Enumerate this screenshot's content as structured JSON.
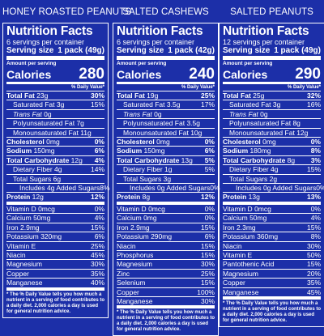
{
  "labels": [
    {
      "product": "HONEY ROASTED PEANUTS",
      "title": "Nutrition Facts",
      "servings": "6 servings per container",
      "serving_label": "Serving size",
      "serving_value": "1 pack (49g)",
      "amount_per_serving": "Amount per serving",
      "calories_label": "Calories",
      "calories": "280",
      "dv_header": "% Daily Value*",
      "rows": [
        {
          "name": "Total Fat",
          "bold": true,
          "amt": "23g",
          "dv": "30%",
          "indent": 0
        },
        {
          "name": "Saturated Fat",
          "bold": false,
          "amt": "3g",
          "dv": "15%",
          "indent": 1
        },
        {
          "name": "Trans Fat",
          "bold": false,
          "italic": true,
          "amt": "0g",
          "dv": "",
          "indent": 1
        },
        {
          "name": "Polyunsaturated Fat",
          "bold": false,
          "amt": "7g",
          "dv": "",
          "indent": 1
        },
        {
          "name": "Monounsaturated Fat",
          "bold": false,
          "amt": "11g",
          "dv": "",
          "indent": 1
        },
        {
          "name": "Cholesterol",
          "bold": true,
          "amt": "0mg",
          "dv": "0%",
          "indent": 0
        },
        {
          "name": "Sodium",
          "bold": true,
          "amt": "150mg",
          "dv": "6%",
          "indent": 0
        },
        {
          "name": "Total Carbohydrate",
          "bold": true,
          "amt": "12g",
          "dv": "4%",
          "indent": 0
        },
        {
          "name": "Dietary Fiber",
          "bold": false,
          "amt": "4g",
          "dv": "14%",
          "indent": 1
        },
        {
          "name": "Total Sugars",
          "bold": false,
          "amt": "6g",
          "dv": "",
          "indent": 1
        },
        {
          "name": "Includes 4g Added Sugars",
          "bold": false,
          "amt": "",
          "dv": "8%",
          "indent": 2
        },
        {
          "name": "Protein",
          "bold": true,
          "amt": "12g",
          "dv": "12%",
          "indent": 0,
          "thick": true
        },
        {
          "name": "Vitamin D",
          "bold": false,
          "amt": "0mcg",
          "dv": "0%",
          "indent": 0
        },
        {
          "name": "Calcium",
          "bold": false,
          "amt": "50mg",
          "dv": "4%",
          "indent": 0
        },
        {
          "name": "Iron",
          "bold": false,
          "amt": "2.9mg",
          "dv": "15%",
          "indent": 0
        },
        {
          "name": "Potassium",
          "bold": false,
          "amt": "320mg",
          "dv": "6%",
          "indent": 0
        },
        {
          "name": "Vitamin E",
          "bold": false,
          "amt": "",
          "dv": "25%",
          "indent": 0
        },
        {
          "name": "Niacin",
          "bold": false,
          "amt": "",
          "dv": "45%",
          "indent": 0
        },
        {
          "name": "Magnesium",
          "bold": false,
          "amt": "",
          "dv": "30%",
          "indent": 0
        },
        {
          "name": "Copper",
          "bold": false,
          "amt": "",
          "dv": "35%",
          "indent": 0
        },
        {
          "name": "Manganese",
          "bold": false,
          "amt": "",
          "dv": "40%",
          "indent": 0,
          "thick": true
        }
      ],
      "footnote": "* The % Daily Value tells you how much a nutrient in a serving of food contributes to a daily diet. 2,000 calories a day is used for general nutrition advice."
    },
    {
      "product": "SALTED CASHEWS",
      "title": "Nutrition Facts",
      "servings": "6 servings per container",
      "serving_label": "Serving size",
      "serving_value": "1 pack (42g)",
      "amount_per_serving": "Amount per serving",
      "calories_label": "Calories",
      "calories": "240",
      "dv_header": "% Daily Value*",
      "rows": [
        {
          "name": "Total Fat",
          "bold": true,
          "amt": "19g",
          "dv": "25%",
          "indent": 0
        },
        {
          "name": "Saturated Fat",
          "bold": false,
          "amt": "3.5g",
          "dv": "17%",
          "indent": 1
        },
        {
          "name": "Trans Fat",
          "bold": false,
          "italic": true,
          "amt": "0g",
          "dv": "",
          "indent": 1
        },
        {
          "name": "Polyunsaturated Fat",
          "bold": false,
          "amt": "3.5g",
          "dv": "",
          "indent": 1
        },
        {
          "name": "Monounsaturated Fat",
          "bold": false,
          "amt": "10g",
          "dv": "",
          "indent": 1
        },
        {
          "name": "Cholesterol",
          "bold": true,
          "amt": "0mg",
          "dv": "0%",
          "indent": 0
        },
        {
          "name": "Sodium",
          "bold": true,
          "amt": "150mg",
          "dv": "6%",
          "indent": 0
        },
        {
          "name": "Total Carbohydrate",
          "bold": true,
          "amt": "13g",
          "dv": "5%",
          "indent": 0
        },
        {
          "name": "Dietary Fiber",
          "bold": false,
          "amt": "1g",
          "dv": "5%",
          "indent": 1
        },
        {
          "name": "Total Sugars",
          "bold": false,
          "amt": "3g",
          "dv": "",
          "indent": 1
        },
        {
          "name": "Includes 0g Added Sugars",
          "bold": false,
          "amt": "",
          "dv": "0%",
          "indent": 2
        },
        {
          "name": "Protein",
          "bold": true,
          "amt": "8g",
          "dv": "12%",
          "indent": 0,
          "thick": true
        },
        {
          "name": "Vitamin D",
          "bold": false,
          "amt": "0mcg",
          "dv": "0%",
          "indent": 0
        },
        {
          "name": "Calcium",
          "bold": false,
          "amt": "0mg",
          "dv": "0%",
          "indent": 0
        },
        {
          "name": "Iron",
          "bold": false,
          "amt": "2.9mg",
          "dv": "15%",
          "indent": 0
        },
        {
          "name": "Potassium",
          "bold": false,
          "amt": "290mg",
          "dv": "6%",
          "indent": 0
        },
        {
          "name": "Niacin",
          "bold": false,
          "amt": "",
          "dv": "15%",
          "indent": 0
        },
        {
          "name": "Phosphorus",
          "bold": false,
          "amt": "",
          "dv": "15%",
          "indent": 0
        },
        {
          "name": "Magnesium",
          "bold": false,
          "amt": "",
          "dv": "30%",
          "indent": 0
        },
        {
          "name": "Zinc",
          "bold": false,
          "amt": "",
          "dv": "25%",
          "indent": 0
        },
        {
          "name": "Selenium",
          "bold": false,
          "amt": "",
          "dv": "15%",
          "indent": 0
        },
        {
          "name": "Copper",
          "bold": false,
          "amt": "",
          "dv": "100%",
          "indent": 0
        },
        {
          "name": "Manganese",
          "bold": false,
          "amt": "",
          "dv": "30%",
          "indent": 0,
          "thick": true
        }
      ],
      "footnote": "* The % Daily Value tells you how much a nutrient in a serving of food contributes to a daily diet. 2,000 calories a day is used for general nutrition advice."
    },
    {
      "product": "SALTED PEANUTS",
      "title": "Nutrition Facts",
      "servings": "12 servings per container",
      "serving_label": "Serving size",
      "serving_value": "1 pack (49g)",
      "amount_per_serving": "Amount per serving",
      "calories_label": "Calories",
      "calories": "290",
      "dv_header": "% Daily Value*",
      "rows": [
        {
          "name": "Total Fat",
          "bold": true,
          "amt": "25g",
          "dv": "32%",
          "indent": 0
        },
        {
          "name": "Saturated Fat",
          "bold": false,
          "amt": "3g",
          "dv": "16%",
          "indent": 1
        },
        {
          "name": "Trans Fat",
          "bold": false,
          "italic": true,
          "amt": "0g",
          "dv": "",
          "indent": 1
        },
        {
          "name": "Polyunsaturated Fat",
          "bold": false,
          "amt": "8g",
          "dv": "",
          "indent": 1
        },
        {
          "name": "Monounsaturated Fat",
          "bold": false,
          "amt": "12g",
          "dv": "",
          "indent": 1
        },
        {
          "name": "Cholesterol",
          "bold": true,
          "amt": "0mg",
          "dv": "0%",
          "indent": 0
        },
        {
          "name": "Sodium",
          "bold": true,
          "amt": "180mg",
          "dv": "8%",
          "indent": 0
        },
        {
          "name": "Total Carbohydrate",
          "bold": true,
          "amt": "8g",
          "dv": "3%",
          "indent": 0
        },
        {
          "name": "Dietary Fiber",
          "bold": false,
          "amt": "4g",
          "dv": "15%",
          "indent": 1
        },
        {
          "name": "Total Sugars",
          "bold": false,
          "amt": "2g",
          "dv": "",
          "indent": 1
        },
        {
          "name": "Includes 0g Added Sugars",
          "bold": false,
          "amt": "",
          "dv": "0%",
          "indent": 2
        },
        {
          "name": "Protein",
          "bold": true,
          "amt": "13g",
          "dv": "13%",
          "indent": 0,
          "thick": true
        },
        {
          "name": "Vitamin D",
          "bold": false,
          "amt": "0mcg",
          "dv": "0%",
          "indent": 0
        },
        {
          "name": "Calcium",
          "bold": false,
          "amt": "50mg",
          "dv": "4%",
          "indent": 0
        },
        {
          "name": "Iron",
          "bold": false,
          "amt": "2.3mg",
          "dv": "15%",
          "indent": 0
        },
        {
          "name": "Potassium",
          "bold": false,
          "amt": "360mg",
          "dv": "8%",
          "indent": 0
        },
        {
          "name": "Niacin",
          "bold": false,
          "amt": "",
          "dv": "30%",
          "indent": 0
        },
        {
          "name": "Vitamin E",
          "bold": false,
          "amt": "",
          "dv": "50%",
          "indent": 0
        },
        {
          "name": "Pantothenic Acid",
          "bold": false,
          "amt": "",
          "dv": "15%",
          "indent": 0
        },
        {
          "name": "Magnesium",
          "bold": false,
          "amt": "",
          "dv": "20%",
          "indent": 0
        },
        {
          "name": "Copper",
          "bold": false,
          "amt": "",
          "dv": "35%",
          "indent": 0
        },
        {
          "name": "Manganese",
          "bold": false,
          "amt": "",
          "dv": "45%",
          "indent": 0,
          "thick": true
        }
      ],
      "footnote": "* The % Daily Value tells you how much a nutrient in a serving of food contributes to a daily diet. 2,000 calories a day is used for general nutrition advice."
    }
  ],
  "colors": {
    "background": "#1c2fa8",
    "text": "#ffffff"
  }
}
